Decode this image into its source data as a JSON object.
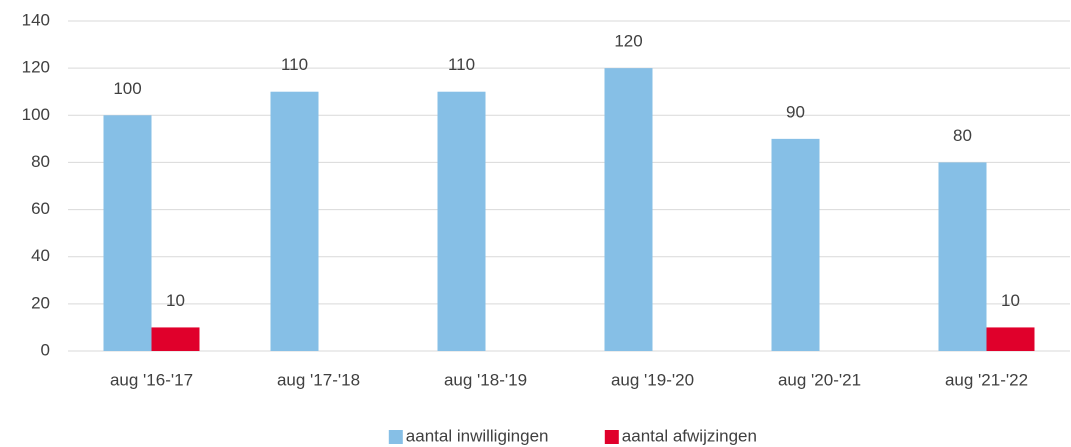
{
  "chart_data": {
    "type": "bar",
    "categories": [
      "aug '16-'17",
      "aug '17-'18",
      "aug '18-'19",
      "aug '19-'20",
      "aug '20-'21",
      "aug '21-'22"
    ],
    "series": [
      {
        "name": "aantal inwilligingen",
        "color": "#86bfe6",
        "values": [
          100,
          110,
          110,
          120,
          90,
          80
        ]
      },
      {
        "name": "aantal afwijzingen",
        "color": "#e0002b",
        "values": [
          10,
          null,
          null,
          null,
          null,
          10
        ]
      }
    ],
    "ylim": [
      0,
      140
    ],
    "yticks": [
      0,
      20,
      40,
      60,
      80,
      100,
      120,
      140
    ],
    "grid": true,
    "legend": "bottom"
  }
}
